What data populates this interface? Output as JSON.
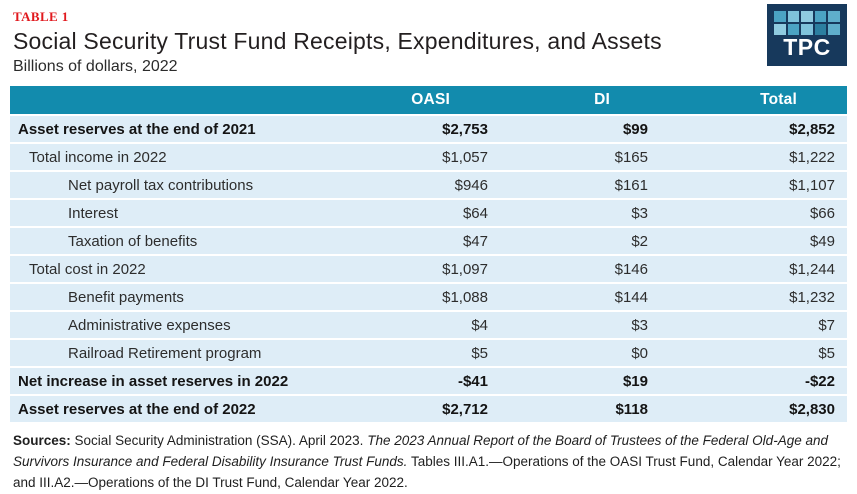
{
  "header": {
    "table_label": "TABLE 1",
    "title": "Social Security Trust Fund Receipts, Expenditures, and Assets",
    "subtitle": "Billions of dollars, 2022"
  },
  "logo": {
    "text": "TPC",
    "squares": [
      "#4BA3C3",
      "#7FC3DB",
      "#8FCBE0",
      "#4BA3C3",
      "#5FAECB",
      "#8FCBE0",
      "#4BA3C3",
      "#7FC3DB",
      "#2C7FA0",
      "#5FAECB"
    ]
  },
  "table": {
    "columns": [
      "OASI",
      "DI",
      "Total"
    ],
    "rows": [
      {
        "label": "Asset reserves at the end of 2021",
        "values": [
          "$2,753",
          "$99",
          "$2,852"
        ],
        "bold": true,
        "indent": 0
      },
      {
        "label": "Total income in 2022",
        "values": [
          "$1,057",
          "$165",
          "$1,222"
        ],
        "bold": false,
        "indent": 1
      },
      {
        "label": "Net payroll tax contributions",
        "values": [
          "$946",
          "$161",
          "$1,107"
        ],
        "bold": false,
        "indent": 2
      },
      {
        "label": "Interest",
        "values": [
          "$64",
          "$3",
          "$66"
        ],
        "bold": false,
        "indent": 2
      },
      {
        "label": "Taxation of benefits",
        "values": [
          "$47",
          "$2",
          "$49"
        ],
        "bold": false,
        "indent": 2
      },
      {
        "label": "Total cost in 2022",
        "values": [
          "$1,097",
          "$146",
          "$1,244"
        ],
        "bold": false,
        "indent": 1
      },
      {
        "label": "Benefit payments",
        "values": [
          "$1,088",
          "$144",
          "$1,232"
        ],
        "bold": false,
        "indent": 2
      },
      {
        "label": "Administrative expenses",
        "values": [
          "$4",
          "$3",
          "$7"
        ],
        "bold": false,
        "indent": 2
      },
      {
        "label": "Railroad Retirement program",
        "values": [
          "$5",
          "$0",
          "$5"
        ],
        "bold": false,
        "indent": 2
      },
      {
        "label": "Net increase in asset reserves in 2022",
        "values": [
          "-$41",
          "$19",
          "-$22"
        ],
        "bold": true,
        "indent": 0
      },
      {
        "label": "Asset reserves at the end of 2022",
        "values": [
          "$2,712",
          "$118",
          "$2,830"
        ],
        "bold": true,
        "indent": 0
      }
    ]
  },
  "footer": {
    "sources_label": "Sources:",
    "part1": "Social Security Administration (SSA). April 2023.",
    "italic": "The 2023 Annual Report of the Board of Trustees of the Federal Old-Age and Survivors Insurance and Federal Disability Insurance Trust Funds.",
    "part2": "Tables III.A1.—Operations of the OASI Trust Fund, Calendar Year 2022; and III.A2.—Operations of the DI Trust Fund, Calendar Year 2022."
  },
  "colors": {
    "header-bg": "#128BAD",
    "row-bg": "#DEEDF7",
    "accent-red": "#E1191E",
    "logo-bg": "#17395C"
  },
  "chart_data": {
    "type": "table",
    "title": "Social Security Trust Fund Receipts, Expenditures, and Assets",
    "subtitle": "Billions of dollars, 2022",
    "units": "billions of dollars",
    "columns": [
      "OASI",
      "DI",
      "Total"
    ],
    "rows": [
      {
        "label": "Asset reserves at the end of 2021",
        "OASI": 2753,
        "DI": 99,
        "Total": 2852
      },
      {
        "label": "Total income in 2022",
        "OASI": 1057,
        "DI": 165,
        "Total": 1222
      },
      {
        "label": "Net payroll tax contributions",
        "OASI": 946,
        "DI": 161,
        "Total": 1107
      },
      {
        "label": "Interest",
        "OASI": 64,
        "DI": 3,
        "Total": 66
      },
      {
        "label": "Taxation of benefits",
        "OASI": 47,
        "DI": 2,
        "Total": 49
      },
      {
        "label": "Total cost in 2022",
        "OASI": 1097,
        "DI": 146,
        "Total": 1244
      },
      {
        "label": "Benefit payments",
        "OASI": 1088,
        "DI": 144,
        "Total": 1232
      },
      {
        "label": "Administrative expenses",
        "OASI": 4,
        "DI": 3,
        "Total": 7
      },
      {
        "label": "Railroad Retirement program",
        "OASI": 5,
        "DI": 0,
        "Total": 5
      },
      {
        "label": "Net increase in asset reserves in 2022",
        "OASI": -41,
        "DI": 19,
        "Total": -22
      },
      {
        "label": "Asset reserves at the end of 2022",
        "OASI": 2712,
        "DI": 118,
        "Total": 2830
      }
    ]
  }
}
